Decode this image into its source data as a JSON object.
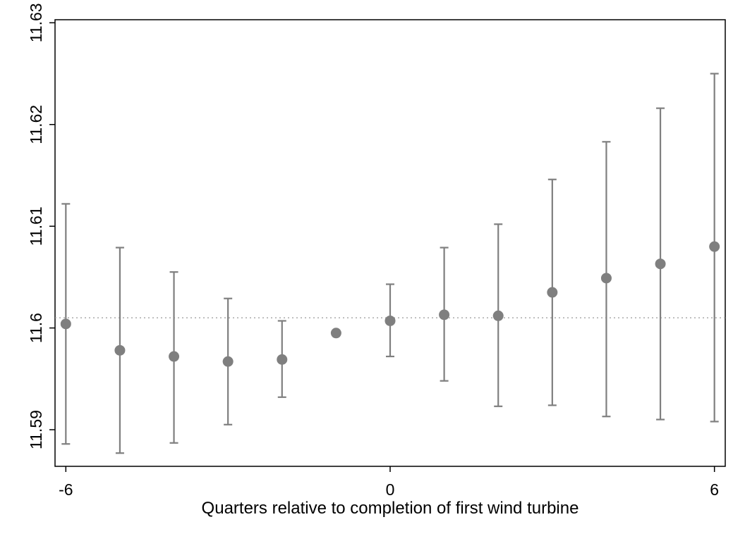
{
  "chart_data": {
    "type": "scatter",
    "title": "",
    "xlabel": "Quarters relative to completion of first wind turbine",
    "ylabel": "",
    "xlim": [
      -6.2,
      6.2
    ],
    "ylim": [
      11.5864,
      11.6303
    ],
    "x_ticks": [
      -6,
      0,
      6
    ],
    "x_tick_labels": [
      "-6",
      "0",
      "6"
    ],
    "y_ticks": [
      11.59,
      11.6,
      11.61,
      11.62,
      11.63
    ],
    "y_tick_labels": [
      "11.59",
      "11.6",
      "11.61",
      "11.62",
      "11.63"
    ],
    "reference_line_y": 11.601,
    "grid": false,
    "series": [
      {
        "points": [
          {
            "x": -6,
            "y": 11.6004,
            "lo": 11.5886,
            "hi": 11.6122
          },
          {
            "x": -5,
            "y": 11.5978,
            "lo": 11.5877,
            "hi": 11.6079
          },
          {
            "x": -4,
            "y": 11.5972,
            "lo": 11.5887,
            "hi": 11.6055
          },
          {
            "x": -3,
            "y": 11.5967,
            "lo": 11.5905,
            "hi": 11.6029
          },
          {
            "x": -2,
            "y": 11.5969,
            "lo": 11.5932,
            "hi": 11.6007
          },
          {
            "x": -1,
            "y": 11.5995,
            "lo": null,
            "hi": null
          },
          {
            "x": 0,
            "y": 11.6007,
            "lo": 11.5972,
            "hi": 11.6043
          },
          {
            "x": 1,
            "y": 11.6013,
            "lo": 11.5948,
            "hi": 11.6079
          },
          {
            "x": 2,
            "y": 11.6012,
            "lo": 11.5923,
            "hi": 11.6102
          },
          {
            "x": 3,
            "y": 11.6035,
            "lo": 11.5924,
            "hi": 11.6146
          },
          {
            "x": 4,
            "y": 11.6049,
            "lo": 11.5913,
            "hi": 11.6183
          },
          {
            "x": 5,
            "y": 11.6063,
            "lo": 11.591,
            "hi": 11.6216
          },
          {
            "x": 6,
            "y": 11.608,
            "lo": 11.5908,
            "hi": 11.625
          }
        ]
      }
    ],
    "colors": {
      "marker": "#7f7f7f",
      "error_bar": "#7f7f7f",
      "reference_line": "#999999",
      "axis": "#000000"
    }
  }
}
